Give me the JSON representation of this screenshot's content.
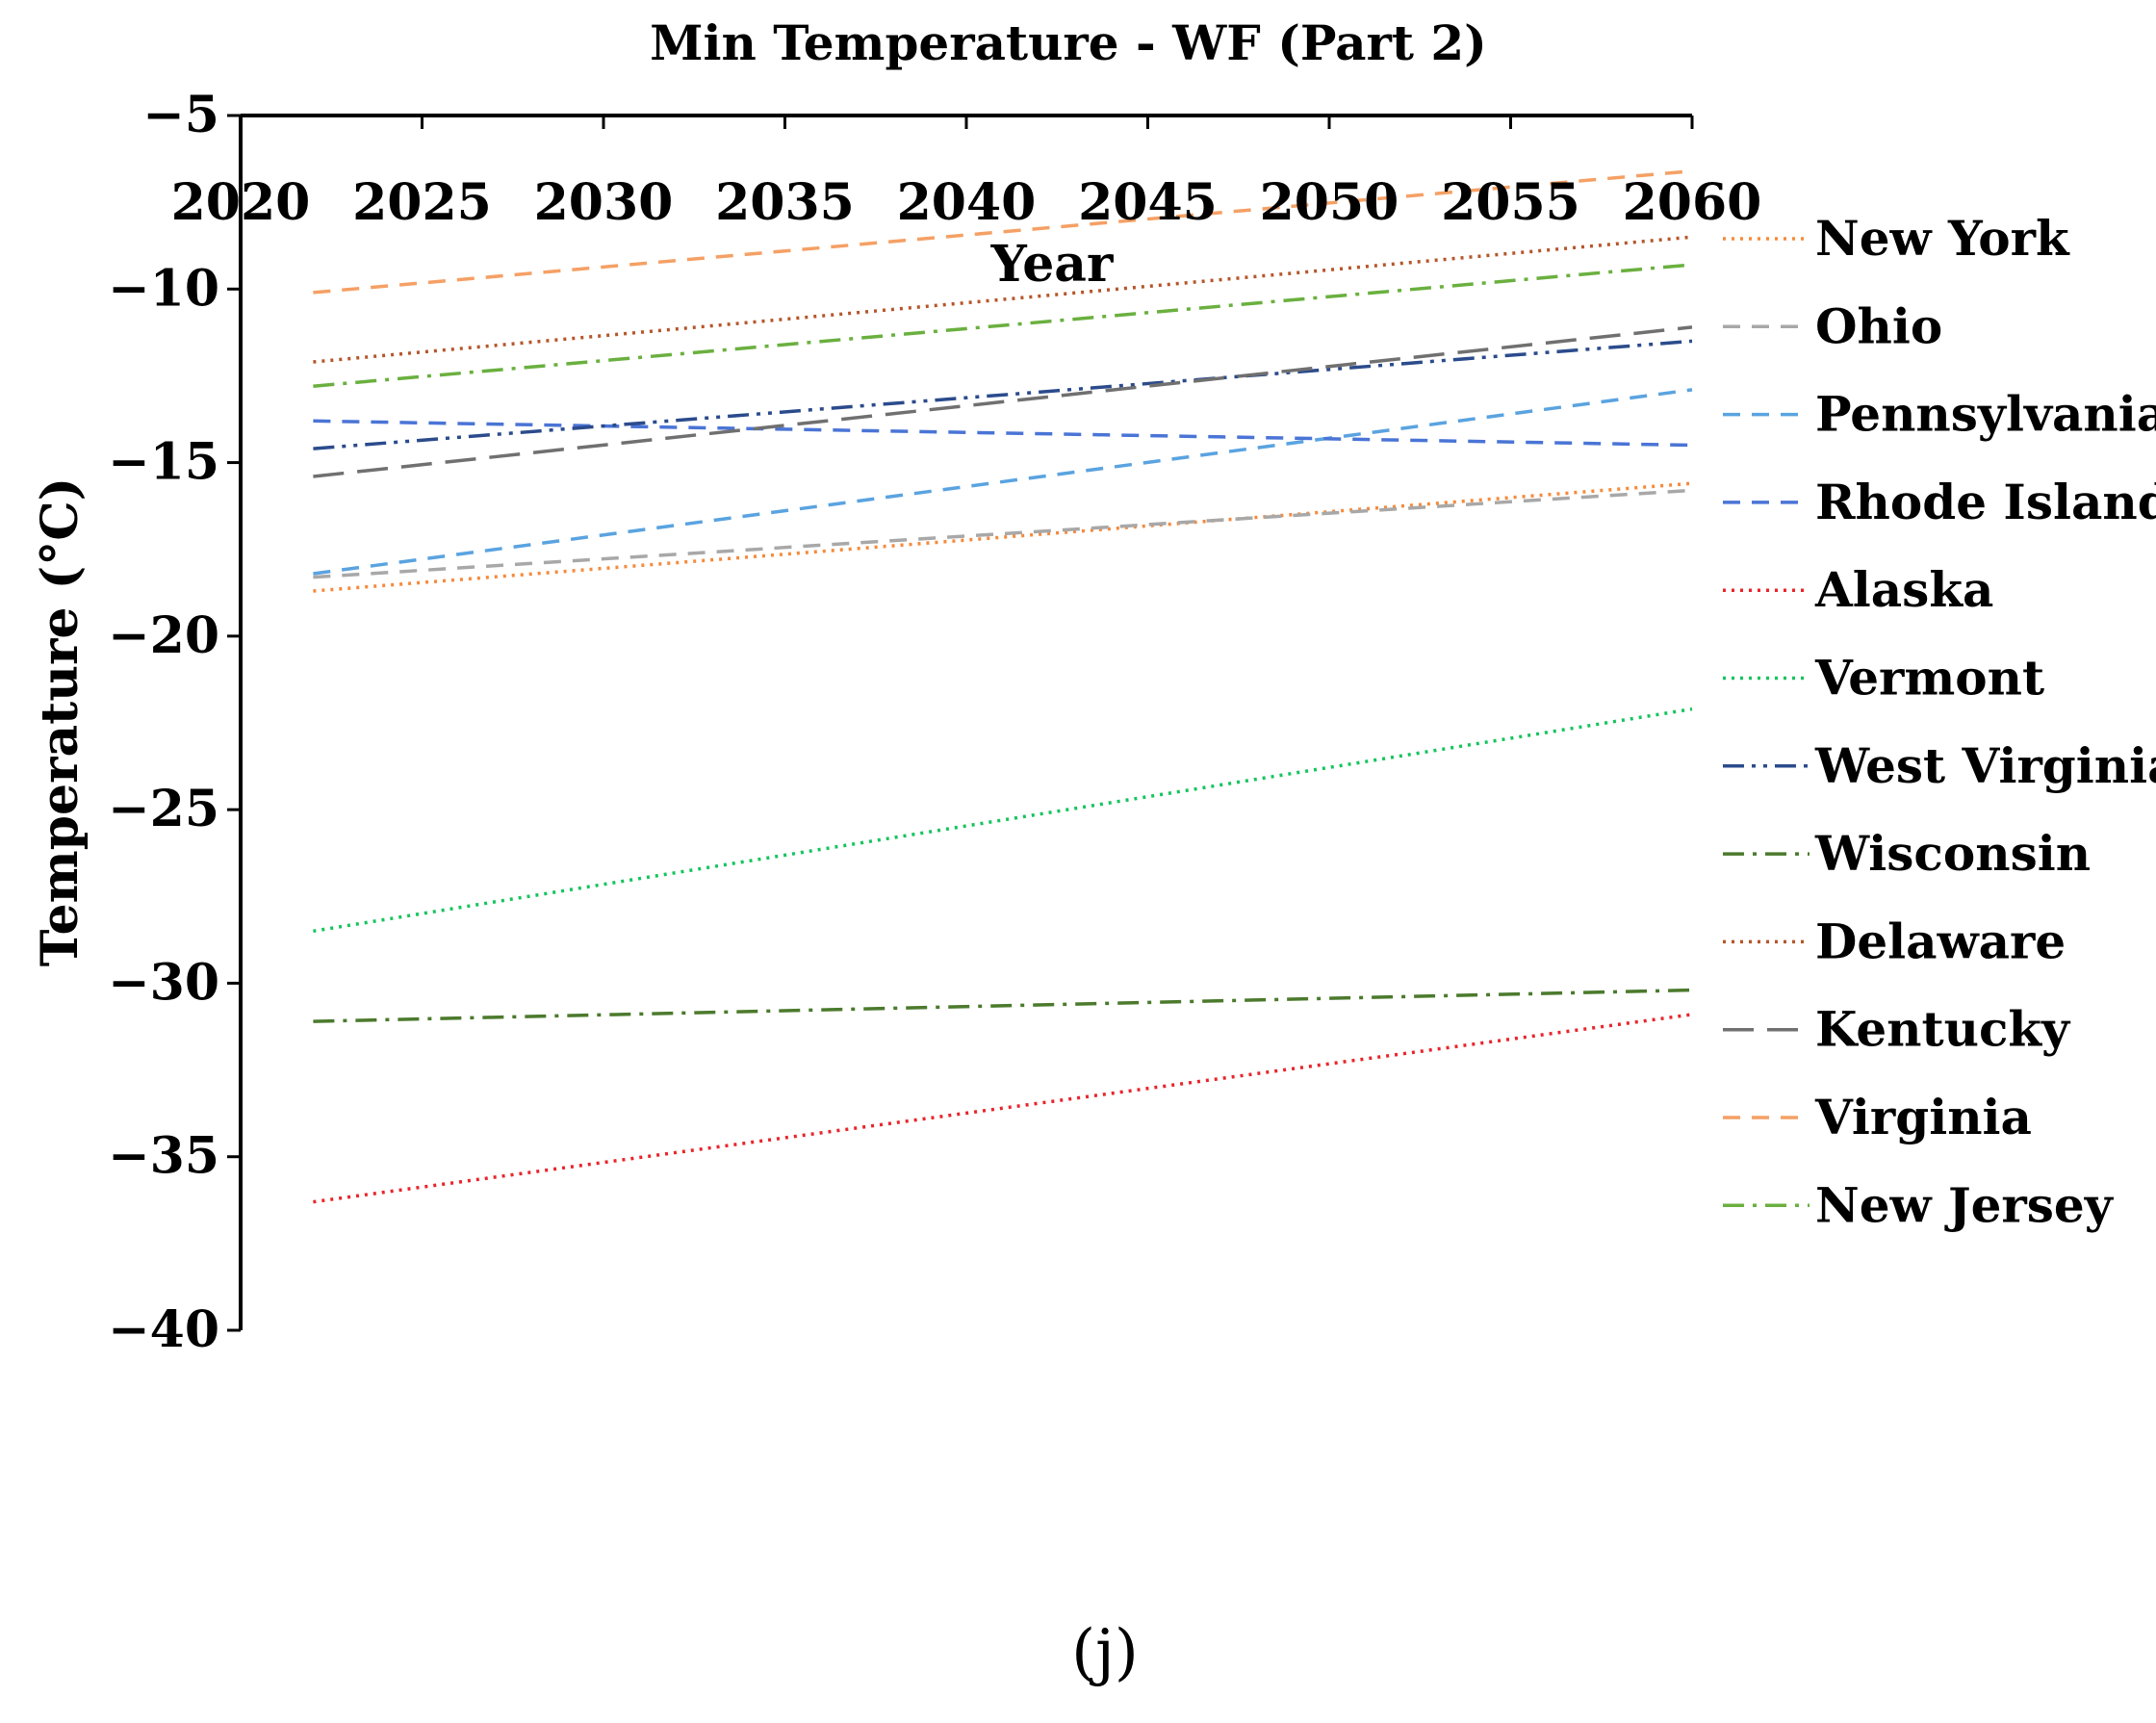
{
  "caption": "(j)",
  "chart_data": {
    "type": "line",
    "title": "Min Temperature - WF (Part 2)",
    "xlabel": "Year",
    "ylabel": "Temperature (°C)",
    "xlim": [
      2020,
      2060
    ],
    "ylim": [
      -40,
      -5
    ],
    "x_ticks": [
      2020,
      2025,
      2030,
      2035,
      2040,
      2045,
      2050,
      2055,
      2060
    ],
    "y_ticks": [
      -5,
      -10,
      -15,
      -20,
      -25,
      -30,
      -35,
      -40
    ],
    "x_tick_labels": [
      "2020",
      "2025",
      "2030",
      "2035",
      "2040",
      "2045",
      "2050",
      "2055",
      "2060"
    ],
    "y_tick_labels": [
      "−5",
      "−10",
      "−15",
      "−20",
      "−25",
      "−30",
      "−35",
      "−40"
    ],
    "legend_position": "right",
    "series": [
      {
        "name": "New York",
        "x": [
          2022,
          2060
        ],
        "y": [
          -18.7,
          -15.6
        ],
        "color": "#f58a3b",
        "dash": "dot"
      },
      {
        "name": "Ohio",
        "x": [
          2022,
          2060
        ],
        "y": [
          -18.3,
          -15.8
        ],
        "color": "#a8a8a8",
        "dash": "dash"
      },
      {
        "name": "Pennsylvania",
        "x": [
          2022,
          2060
        ],
        "y": [
          -18.2,
          -12.9
        ],
        "color": "#5aa3e0",
        "dash": "dash"
      },
      {
        "name": "Rhode Island",
        "x": [
          2022,
          2060
        ],
        "y": [
          -13.8,
          -14.5
        ],
        "color": "#4a74d6",
        "dash": "dash"
      },
      {
        "name": "Alaska",
        "x": [
          2022,
          2060
        ],
        "y": [
          -36.3,
          -30.9
        ],
        "color": "#e8252b",
        "dash": "dot"
      },
      {
        "name": "Vermont",
        "x": [
          2022,
          2060
        ],
        "y": [
          -28.5,
          -22.1
        ],
        "color": "#15c45e",
        "dash": "dot"
      },
      {
        "name": "West Virginia",
        "x": [
          2022,
          2060
        ],
        "y": [
          -14.6,
          -11.5
        ],
        "color": "#2b4b8c",
        "dash": "dashdotdot"
      },
      {
        "name": "Wisconsin",
        "x": [
          2022,
          2060
        ],
        "y": [
          -31.1,
          -30.2
        ],
        "color": "#4b7a2c",
        "dash": "dashdot"
      },
      {
        "name": "Delaware",
        "x": [
          2022,
          2060
        ],
        "y": [
          -12.1,
          -8.5
        ],
        "color": "#b5562a",
        "dash": "dot"
      },
      {
        "name": "Kentucky",
        "x": [
          2022,
          2060
        ],
        "y": [
          -15.4,
          -11.1
        ],
        "color": "#707070",
        "dash": "longdash"
      },
      {
        "name": "Virginia",
        "x": [
          2022,
          2060
        ],
        "y": [
          -10.1,
          -6.6
        ],
        "color": "#f5a065",
        "dash": "dash"
      },
      {
        "name": "New Jersey",
        "x": [
          2022,
          2060
        ],
        "y": [
          -12.8,
          -9.3
        ],
        "color": "#6ab03f",
        "dash": "dashdot"
      }
    ]
  }
}
